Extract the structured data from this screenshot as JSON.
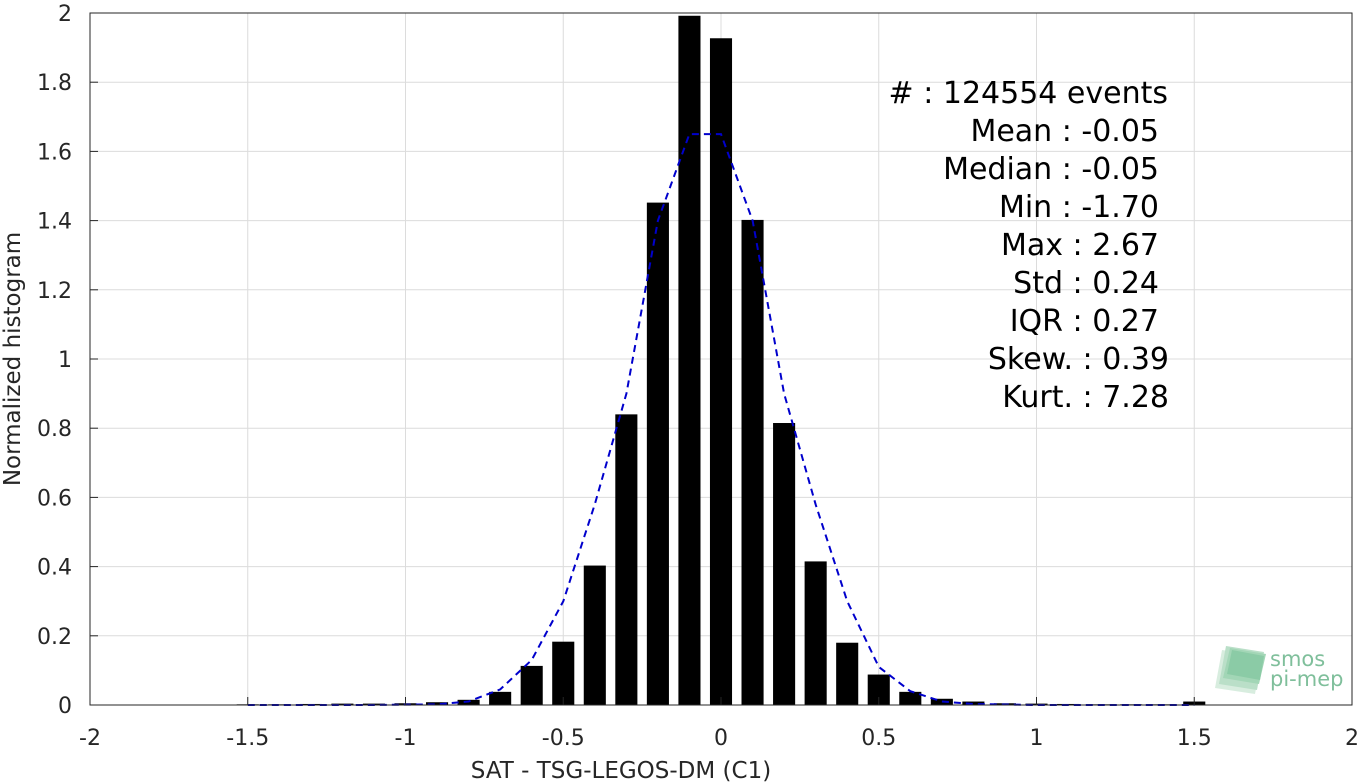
{
  "chart_data": {
    "type": "bar",
    "xlabel": "SAT - TSG-LEGOS-DM (C1)",
    "ylabel": "Normalized histogram",
    "xlim": [
      -2,
      2
    ],
    "ylim": [
      0,
      2
    ],
    "grid": true,
    "x_ticks": [
      "-2",
      "-1.5",
      "-1",
      "-0.5",
      "0",
      "0.5",
      "1",
      "1.5",
      "2"
    ],
    "y_ticks": [
      "0",
      "0.2",
      "0.4",
      "0.6",
      "0.8",
      "1",
      "1.2",
      "1.4",
      "1.6",
      "1.8",
      "2"
    ],
    "bar_width": 0.07,
    "bar_color": "#000000",
    "bins": [
      {
        "x": -1.5,
        "y": 0.002
      },
      {
        "x": -1.4,
        "y": 0.002
      },
      {
        "x": -1.3,
        "y": 0.003
      },
      {
        "x": -1.2,
        "y": 0.004
      },
      {
        "x": -1.1,
        "y": 0.004
      },
      {
        "x": -1.0,
        "y": 0.005
      },
      {
        "x": -0.9,
        "y": 0.008
      },
      {
        "x": -0.8,
        "y": 0.015
      },
      {
        "x": -0.7,
        "y": 0.038
      },
      {
        "x": -0.6,
        "y": 0.113
      },
      {
        "x": -0.5,
        "y": 0.183
      },
      {
        "x": -0.4,
        "y": 0.403
      },
      {
        "x": -0.3,
        "y": 0.84
      },
      {
        "x": -0.2,
        "y": 1.452
      },
      {
        "x": -0.1,
        "y": 1.992
      },
      {
        "x": 0.0,
        "y": 1.927
      },
      {
        "x": 0.1,
        "y": 1.402
      },
      {
        "x": 0.2,
        "y": 0.815
      },
      {
        "x": 0.3,
        "y": 0.415
      },
      {
        "x": 0.4,
        "y": 0.18
      },
      {
        "x": 0.5,
        "y": 0.088
      },
      {
        "x": 0.6,
        "y": 0.038
      },
      {
        "x": 0.7,
        "y": 0.018
      },
      {
        "x": 0.8,
        "y": 0.01
      },
      {
        "x": 0.9,
        "y": 0.005
      },
      {
        "x": 1.0,
        "y": 0.004
      },
      {
        "x": 1.1,
        "y": 0.003
      },
      {
        "x": 1.2,
        "y": 0.002
      },
      {
        "x": 1.3,
        "y": 0.002
      },
      {
        "x": 1.4,
        "y": 0.002
      },
      {
        "x": 1.5,
        "y": 0.01
      }
    ],
    "fit_curve": {
      "style": "dashed",
      "color": "#0000cc",
      "points": [
        [
          -1.5,
          0.0
        ],
        [
          -1.3,
          0.0
        ],
        [
          -1.1,
          0.0
        ],
        [
          -0.9,
          0.002
        ],
        [
          -0.8,
          0.01
        ],
        [
          -0.7,
          0.045
        ],
        [
          -0.6,
          0.13
        ],
        [
          -0.5,
          0.3
        ],
        [
          -0.4,
          0.58
        ],
        [
          -0.3,
          0.9
        ],
        [
          -0.2,
          1.4
        ],
        [
          -0.1,
          1.65
        ],
        [
          0.0,
          1.65
        ],
        [
          0.1,
          1.4
        ],
        [
          0.2,
          0.9
        ],
        [
          0.3,
          0.58
        ],
        [
          0.4,
          0.3
        ],
        [
          0.5,
          0.11
        ],
        [
          0.6,
          0.04
        ],
        [
          0.7,
          0.01
        ],
        [
          0.8,
          0.003
        ],
        [
          1.0,
          0.0
        ],
        [
          1.2,
          0.0
        ],
        [
          1.5,
          0.0
        ]
      ]
    },
    "annotations": [
      "#  : 124554 events",
      "Mean : -0.05",
      "Median : -0.05",
      "Min : -1.70",
      "Max : 2.67",
      "Std : 0.24",
      "IQR : 0.27",
      "Skew. : 0.39",
      "Kurt. : 7.28"
    ]
  },
  "logo": {
    "line1": "smos",
    "line2": "pi-mep",
    "icon": "layered-bars-logo-icon",
    "color": "#7fbf9b"
  }
}
